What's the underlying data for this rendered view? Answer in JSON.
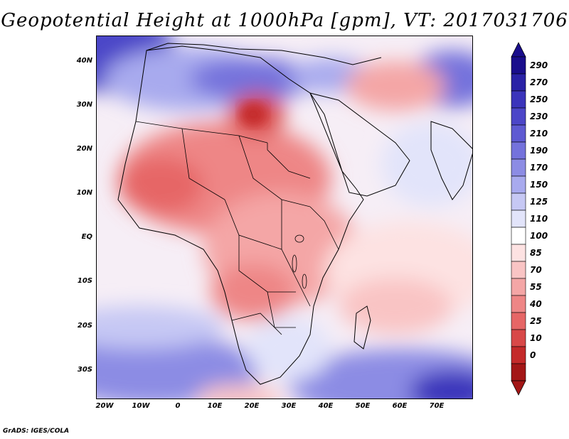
{
  "title": "Geopotential Height at 1000hPa [gpm], VT: 2017031706",
  "footer": "GrADS: IGES/COLA",
  "map": {
    "lat_labels": [
      "40N",
      "30N",
      "20N",
      "10N",
      "EQ",
      "10S",
      "20S",
      "30S"
    ],
    "lon_labels": [
      "20W",
      "10W",
      "0",
      "10E",
      "20E",
      "30E",
      "40E",
      "50E",
      "60E",
      "70E"
    ]
  },
  "colorbar": {
    "labels": [
      "290",
      "270",
      "250",
      "230",
      "210",
      "190",
      "170",
      "150",
      "125",
      "110",
      "100",
      "85",
      "70",
      "55",
      "40",
      "25",
      "10",
      "0"
    ],
    "colors": [
      "#1a0e8c",
      "#2a22a6",
      "#3b34bb",
      "#4c46c8",
      "#5e5ad2",
      "#7472dc",
      "#8c8ce4",
      "#a8aaee",
      "#c6c8f4",
      "#e2e4fa",
      "#ffffff",
      "#fde2e2",
      "#f9c4c4",
      "#f4a6a6",
      "#ee8686",
      "#e66666",
      "#d84848",
      "#c42a2a",
      "#a31616"
    ]
  }
}
